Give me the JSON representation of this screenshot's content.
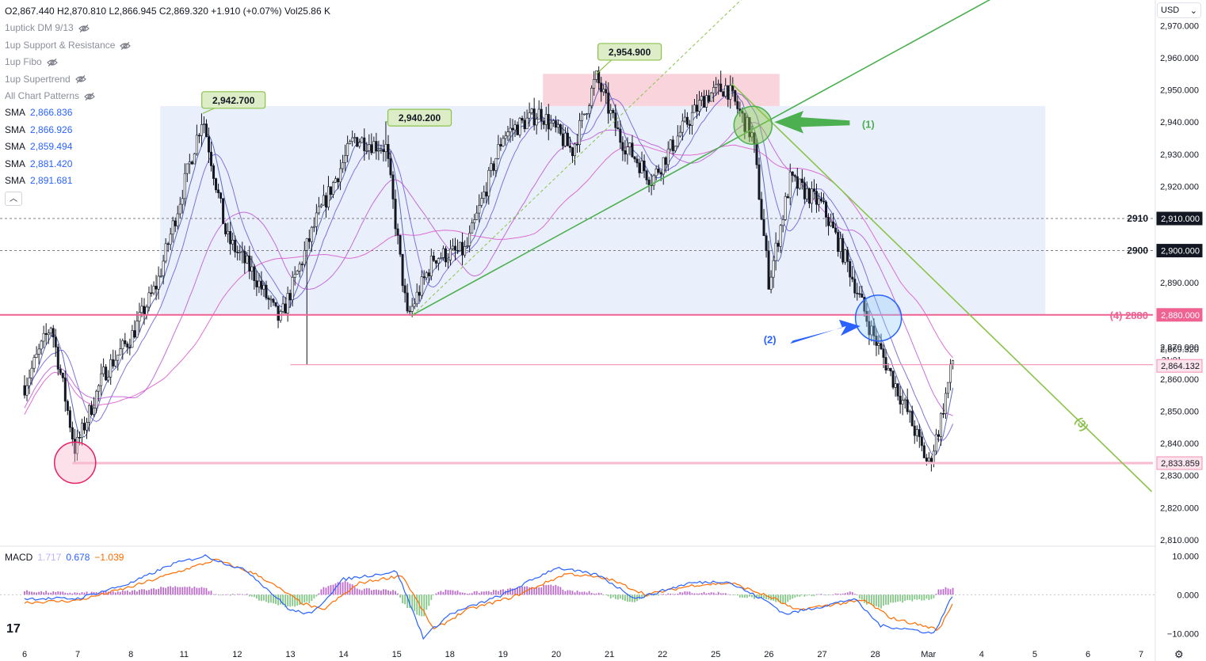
{
  "header": {
    "ohlc": "O2,867.440 H2,870.810 L2,866.945 C2,869.320 +1.910 (+0.07%) Vol25.86 K"
  },
  "indicators": [
    {
      "label": "1uptick DM 9/13"
    },
    {
      "label": "1up Support & Resistance"
    },
    {
      "label": "1up Fibo"
    },
    {
      "label": "1up Supertrend"
    },
    {
      "label": "All Chart Patterns"
    }
  ],
  "sma_list": [
    {
      "name": "SMA",
      "value": "2,866.836"
    },
    {
      "name": "SMA",
      "value": "2,866.926"
    },
    {
      "name": "SMA",
      "value": "2,859.494"
    },
    {
      "name": "SMA",
      "value": "2,881.420"
    },
    {
      "name": "SMA",
      "value": "2,891.681"
    }
  ],
  "currency": {
    "label": "USD",
    "icon": "chevron-down-icon"
  },
  "macd": {
    "name": "MACD",
    "v1": "1.717",
    "v2": "0.678",
    "v3": "−1.039"
  },
  "colors": {
    "up": "#131722",
    "down": "#131722",
    "sma_fast": "#5b6ee1",
    "sma_mid": "#7b6be0",
    "sma_slow": "#c048d6",
    "trend_green": "#4caf50",
    "trend_lime": "#8bc34a",
    "pink_line": "#f48fb1",
    "macd_line": "#2962ff",
    "signal_line": "#ff6d00"
  },
  "chart_data": {
    "type": "candlestick",
    "y_axis": {
      "ticks": [
        "2,970.000",
        "2,960.000",
        "2,950.000",
        "2,940.000",
        "2,930.000",
        "2,920.000",
        "2,890.000",
        "2,870.000",
        "2,860.000",
        "2,850.000",
        "2,840.000",
        "2,830.000",
        "2,820.000",
        "2,810.000"
      ],
      "tick_values": [
        2970,
        2960,
        2950,
        2940,
        2930,
        2920,
        2890,
        2870,
        2860,
        2850,
        2840,
        2830,
        2820,
        2810
      ],
      "range": [
        2808,
        2978
      ]
    },
    "x_axis": {
      "ticks": [
        "6",
        "7",
        "8",
        "11",
        "12",
        "13",
        "14",
        "15",
        "18",
        "19",
        "20",
        "21",
        "22",
        "25",
        "26",
        "27",
        "28",
        "Mar",
        "4",
        "5",
        "6",
        "7"
      ],
      "tick_positions": [
        0,
        1,
        2,
        3,
        4,
        5,
        6,
        7,
        8,
        9,
        10,
        11,
        12,
        13,
        14,
        15,
        16,
        17,
        18,
        19,
        20,
        21
      ]
    },
    "price_labels": [
      {
        "label": "2,910.000",
        "value": 2910,
        "marker": "2910"
      },
      {
        "label": "2,900.000",
        "value": 2900,
        "marker": "2900"
      },
      {
        "label": "2,880.000",
        "value": 2880,
        "marker": "(4) 2880"
      },
      {
        "label": "2,869.320",
        "value": 2869.32,
        "sub": "31:01"
      },
      {
        "label": "2,864.132",
        "value": 2864.132
      },
      {
        "label": "2,833.859",
        "value": 2833.859
      }
    ],
    "callouts": [
      {
        "label": "2,942.700",
        "value": 2942.7
      },
      {
        "label": "2,940.200",
        "value": 2940.2
      },
      {
        "label": "2,954.900",
        "value": 2954.9
      }
    ],
    "annotations": [
      {
        "label": "(1)"
      },
      {
        "label": "(2)"
      },
      {
        "label": "(3)"
      }
    ],
    "zones": [
      {
        "name": "range-zone",
        "from": 2880,
        "to": 2945
      },
      {
        "name": "supply-zone",
        "from": 2945,
        "to": 2955
      }
    ],
    "anchors": [
      {
        "t": 0.0,
        "p": 2858
      },
      {
        "t": 0.5,
        "p": 2877
      },
      {
        "t": 0.95,
        "p": 2838
      },
      {
        "t": 1.5,
        "p": 2862
      },
      {
        "t": 2.0,
        "p": 2873
      },
      {
        "t": 2.5,
        "p": 2890
      },
      {
        "t": 3.35,
        "p": 2942
      },
      {
        "t": 3.8,
        "p": 2904
      },
      {
        "t": 4.3,
        "p": 2893
      },
      {
        "t": 4.8,
        "p": 2878
      },
      {
        "t": 5.5,
        "p": 2910
      },
      {
        "t": 6.2,
        "p": 2935
      },
      {
        "t": 6.8,
        "p": 2932
      },
      {
        "t": 7.2,
        "p": 2879
      },
      {
        "t": 7.7,
        "p": 2898
      },
      {
        "t": 8.3,
        "p": 2900
      },
      {
        "t": 9.0,
        "p": 2936
      },
      {
        "t": 9.7,
        "p": 2943
      },
      {
        "t": 10.3,
        "p": 2931
      },
      {
        "t": 10.75,
        "p": 2954
      },
      {
        "t": 11.2,
        "p": 2935
      },
      {
        "t": 11.8,
        "p": 2922
      },
      {
        "t": 12.3,
        "p": 2936
      },
      {
        "t": 12.8,
        "p": 2948
      },
      {
        "t": 13.2,
        "p": 2951
      },
      {
        "t": 13.7,
        "p": 2935
      },
      {
        "t": 14.0,
        "p": 2890
      },
      {
        "t": 14.4,
        "p": 2922
      },
      {
        "t": 15.0,
        "p": 2914
      },
      {
        "t": 15.5,
        "p": 2895
      },
      {
        "t": 15.9,
        "p": 2876
      },
      {
        "t": 16.6,
        "p": 2850
      },
      {
        "t": 17.0,
        "p": 2833
      },
      {
        "t": 17.2,
        "p": 2845
      },
      {
        "t": 17.5,
        "p": 2869
      }
    ],
    "macd_axis": {
      "ticks": [
        "10.000",
        "0.000",
        "−10.000"
      ],
      "tick_values": [
        10,
        0,
        -10
      ]
    },
    "macd_line": [
      [
        0,
        -1
      ],
      [
        1,
        -1
      ],
      [
        2,
        3
      ],
      [
        2.8,
        8
      ],
      [
        3.4,
        10
      ],
      [
        4.2,
        6
      ],
      [
        5,
        -4
      ],
      [
        5.4,
        -5
      ],
      [
        6,
        4
      ],
      [
        7,
        6
      ],
      [
        7.5,
        -11
      ],
      [
        8,
        -5
      ],
      [
        9,
        0
      ],
      [
        10,
        7
      ],
      [
        10.8,
        5
      ],
      [
        11.5,
        -1
      ],
      [
        12.5,
        3
      ],
      [
        13.2,
        3.5
      ],
      [
        14,
        -2
      ],
      [
        14.3,
        -5
      ],
      [
        15,
        -3
      ],
      [
        15.6,
        -1
      ],
      [
        16.1,
        -8
      ],
      [
        16.7,
        -9
      ],
      [
        17.1,
        -10
      ],
      [
        17.5,
        1
      ]
    ],
    "signal_line": [
      [
        0,
        -2
      ],
      [
        1,
        -1.5
      ],
      [
        2,
        2
      ],
      [
        2.9,
        6
      ],
      [
        3.6,
        9
      ],
      [
        4.4,
        5
      ],
      [
        5.2,
        -2
      ],
      [
        5.6,
        -4
      ],
      [
        6.3,
        3
      ],
      [
        7.1,
        5
      ],
      [
        7.7,
        -9
      ],
      [
        8.3,
        -4
      ],
      [
        9.2,
        -0.5
      ],
      [
        10.2,
        5.5
      ],
      [
        11,
        4
      ],
      [
        11.7,
        0
      ],
      [
        12.6,
        2.5
      ],
      [
        13.3,
        3
      ],
      [
        14.1,
        -1
      ],
      [
        14.5,
        -4
      ],
      [
        15.2,
        -2.5
      ],
      [
        15.8,
        -1.5
      ],
      [
        16.3,
        -6
      ],
      [
        16.9,
        -8
      ],
      [
        17.2,
        -9
      ],
      [
        17.5,
        -1
      ]
    ]
  }
}
